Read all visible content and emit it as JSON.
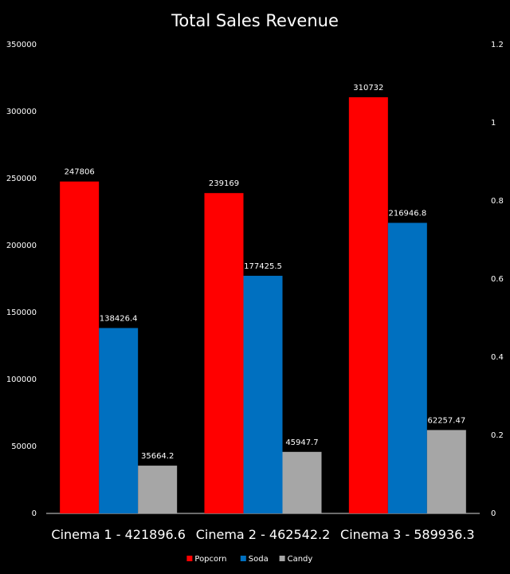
{
  "chart_data": {
    "type": "bar",
    "title": "Total Sales Revenue",
    "categories": [
      "Cinema 1 - 421896.6",
      "Cinema 2 - 462542.2",
      "Cinema 3 - 589936.3"
    ],
    "series": [
      {
        "name": "Popcorn",
        "color": "#ff0000",
        "values": [
          247806,
          239169,
          310732
        ],
        "labels": [
          "247806",
          "239169",
          "310732"
        ]
      },
      {
        "name": "Soda",
        "color": "#0070c0",
        "values": [
          138426.4,
          177425.5,
          216946.8
        ],
        "labels": [
          "138426.4",
          "177425.5",
          "216946.8"
        ]
      },
      {
        "name": "Candy",
        "color": "#a6a6a6",
        "values": [
          35664.2,
          45947.7,
          62257.47
        ],
        "labels": [
          "35664.2",
          "45947.7",
          "62257.47"
        ]
      }
    ],
    "ylim": [
      0,
      350000
    ],
    "yticks": [
      "0",
      "50000",
      "100000",
      "150000",
      "200000",
      "250000",
      "300000",
      "350000"
    ],
    "y2lim": [
      0,
      1.2
    ],
    "y2ticks": [
      "0",
      "0.2",
      "0.4",
      "0.6",
      "0.8",
      "1",
      "1.2"
    ],
    "grid": false,
    "legend": "bottom"
  }
}
